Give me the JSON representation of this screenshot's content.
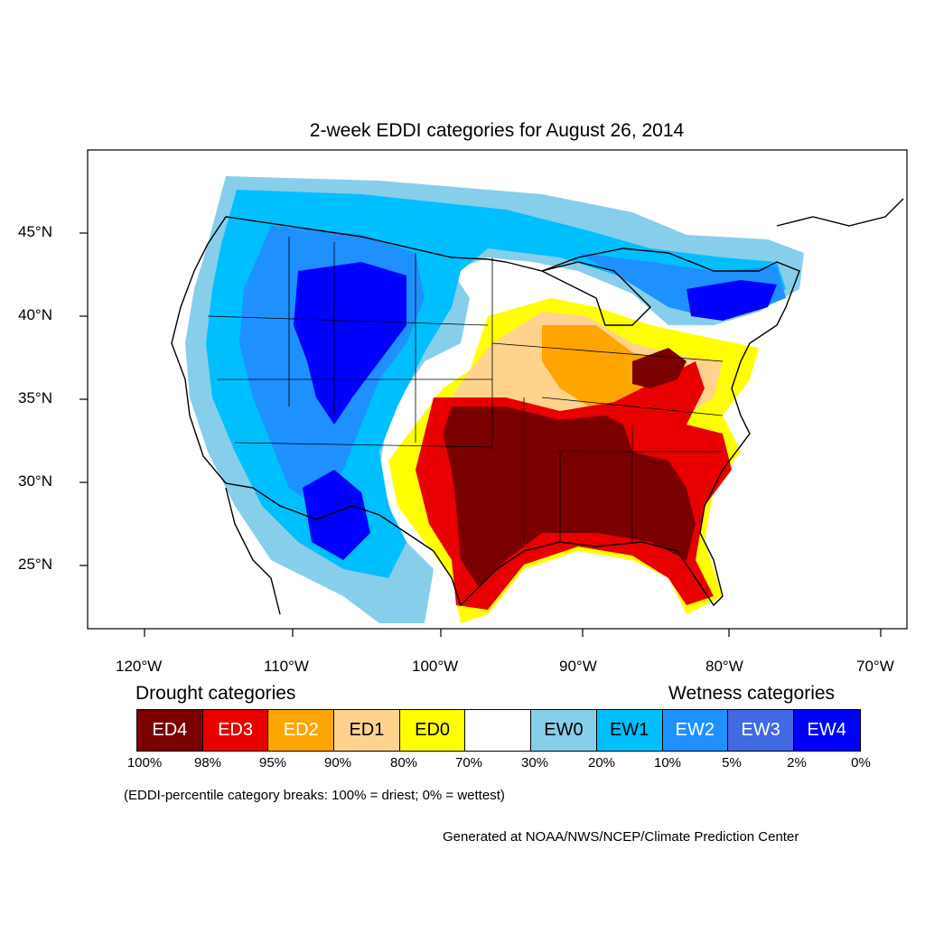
{
  "title": "2-week EDDI categories for August 26, 2014",
  "lat_labels": [
    "45°N",
    "40°N",
    "35°N",
    "30°N",
    "25°N"
  ],
  "lon_labels": [
    "120°W",
    "110°W",
    "100°W",
    "90°W",
    "80°W",
    "70°W"
  ],
  "legend": {
    "drought_header": "Drought categories",
    "wetness_header": "Wetness categories",
    "categories": [
      {
        "label": "ED4",
        "color": "#7a0000",
        "text_color": "#ffffff"
      },
      {
        "label": "ED3",
        "color": "#e80000",
        "text_color": "#ffffff"
      },
      {
        "label": "ED2",
        "color": "#ffa500",
        "text_color": "#ffffff"
      },
      {
        "label": "ED1",
        "color": "#ffd38e",
        "text_color": "#000000"
      },
      {
        "label": "ED0",
        "color": "#ffff00",
        "text_color": "#000000"
      },
      {
        "label": "",
        "color": "#ffffff",
        "text_color": "#000000"
      },
      {
        "label": "EW0",
        "color": "#87ceeb",
        "text_color": "#000000"
      },
      {
        "label": "EW1",
        "color": "#00bfff",
        "text_color": "#000000"
      },
      {
        "label": "EW2",
        "color": "#1e90ff",
        "text_color": "#ffffff"
      },
      {
        "label": "EW3",
        "color": "#4169e1",
        "text_color": "#ffffff"
      },
      {
        "label": "EW4",
        "color": "#0000ff",
        "text_color": "#ffffff"
      }
    ],
    "percentiles": [
      "100%",
      "98%",
      "95%",
      "90%",
      "80%",
      "70%",
      "30%",
      "20%",
      "10%",
      "5%",
      "2%",
      "0%"
    ]
  },
  "note": "(EDDI-percentile category breaks: 100% = driest; 0% = wettest)",
  "credit": "Generated at NOAA/NWS/NCEP/Climate Prediction Center"
}
